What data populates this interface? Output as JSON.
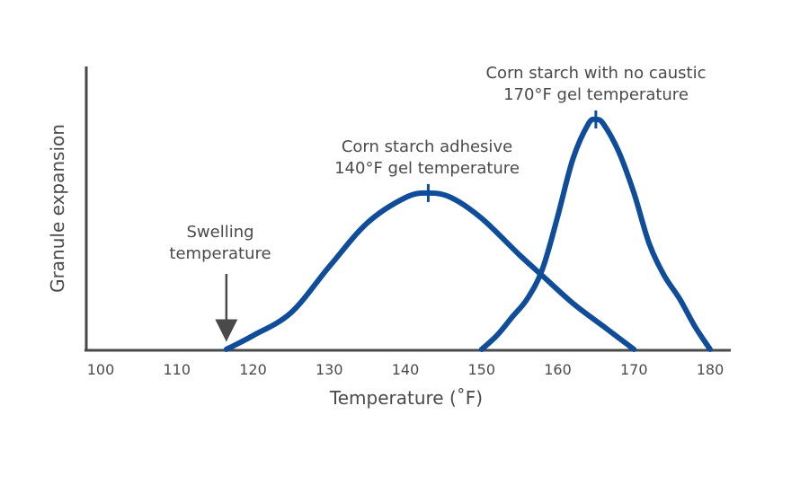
{
  "chart_data": {
    "type": "line",
    "title": "",
    "xlabel": "Temperature (˚F)",
    "ylabel": "Granule expansion",
    "xlim": [
      100,
      182
    ],
    "ylim": [
      0,
      100
    ],
    "xticks": [
      "100",
      "110",
      "120",
      "130",
      "140",
      "150",
      "160",
      "170",
      "180"
    ],
    "yticks": [],
    "grid": false,
    "series": [
      {
        "name": "Corn starch adhesive",
        "color": "#0f4c9a",
        "x": [
          116.5,
          120,
          125,
          130,
          135,
          140,
          143,
          146,
          150,
          155,
          158,
          162,
          166,
          170
        ],
        "y": [
          0,
          6,
          16,
          36,
          55,
          66,
          68,
          66,
          57,
          41,
          32,
          20,
          10,
          0
        ]
      },
      {
        "name": "Corn starch with no caustic",
        "color": "#0f4c9a",
        "x": [
          150,
          152,
          154,
          156,
          158,
          160,
          162,
          164,
          165,
          166,
          168,
          170,
          172,
          174,
          176,
          178,
          180
        ],
        "y": [
          0,
          6,
          14,
          22,
          35,
          58,
          83,
          98,
          100,
          98,
          86,
          68,
          46,
          32,
          22,
          10,
          0
        ]
      }
    ],
    "markers": [
      {
        "series": 0,
        "x": 143,
        "y": 68
      },
      {
        "series": 1,
        "x": 165,
        "y": 100
      }
    ],
    "annotations": [
      {
        "lines": [
          "Corn starch with no caustic",
          "170°F gel temperature"
        ]
      },
      {
        "lines": [
          "Corn starch adhesive",
          "140°F gel temperature"
        ]
      },
      {
        "lines": [
          "Swelling",
          "temperature"
        ]
      }
    ],
    "arrow": {
      "x": 116.5,
      "label_ref": 2
    }
  },
  "colors": {
    "axis": "#4a4a4a",
    "curve": "#0f4c9a",
    "text": "#4a4a4a"
  }
}
